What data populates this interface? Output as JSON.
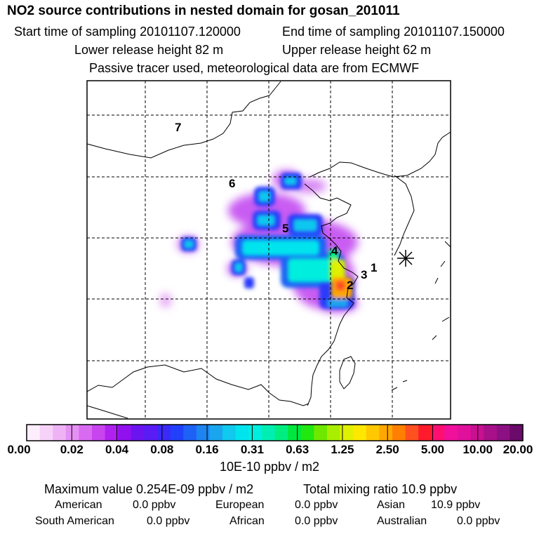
{
  "header": {
    "title": "NO2 source contributions in nested domain for gosan_201011",
    "start_time": "Start time of sampling 20101107.120000",
    "end_time": "End time of sampling 20101107.150000",
    "lower_height": "Lower release height   82 m",
    "upper_height": "Upper release height   62 m",
    "tracer_note": "Passive tracer used, meteorological data are from ECMWF"
  },
  "map": {
    "labels": [
      "1",
      "2",
      "3",
      "4",
      "5",
      "6",
      "7"
    ],
    "receptor_marker": "asterisk-station-marker"
  },
  "colorbar": {
    "tick_labels": [
      "0.00",
      "0.02",
      "0.04",
      "0.08",
      "0.16",
      "0.31",
      "0.63",
      "1.25",
      "2.50",
      "5.00",
      "10.00",
      "20.00"
    ],
    "colors": [
      "#fdeefd",
      "#f6d2f9",
      "#eeb3f5",
      "#e590f3",
      "#d86bf1",
      "#c844ef",
      "#b020ee",
      "#9010ee",
      "#6c14f0",
      "#5a1cf4",
      "#3b29f8",
      "#2240fb",
      "#1d62f5",
      "#1d84f0",
      "#1aa6ee",
      "#11c8ee",
      "#00e4ee",
      "#00eede",
      "#00eeb4",
      "#00ee80",
      "#00e840",
      "#20e810",
      "#6ee800",
      "#a8ee00",
      "#dff000",
      "#ffe800",
      "#ffc800",
      "#ffa800",
      "#ff8000",
      "#ff5020",
      "#ff1a2c",
      "#ff1070",
      "#f0109c",
      "#e0109c",
      "#c81090",
      "#a8108a",
      "#8c1082",
      "#6a0a6a"
    ],
    "units": "10E-10 ppbv / m2"
  },
  "stats": {
    "max_value": "Maximum value  0.254E-09 ppbv / m2",
    "total_mixing": "Total mixing ratio       10.9 ppbv",
    "regions": [
      {
        "name": "American",
        "value": "0.0 ppbv"
      },
      {
        "name": "European",
        "value": "0.0 ppbv"
      },
      {
        "name": "Asian",
        "value": "10.9 ppbv"
      },
      {
        "name": "South American",
        "value": "0.0 ppbv"
      },
      {
        "name": "African",
        "value": "0.0 ppbv"
      },
      {
        "name": "Australian",
        "value": "0.0 ppbv"
      }
    ]
  }
}
